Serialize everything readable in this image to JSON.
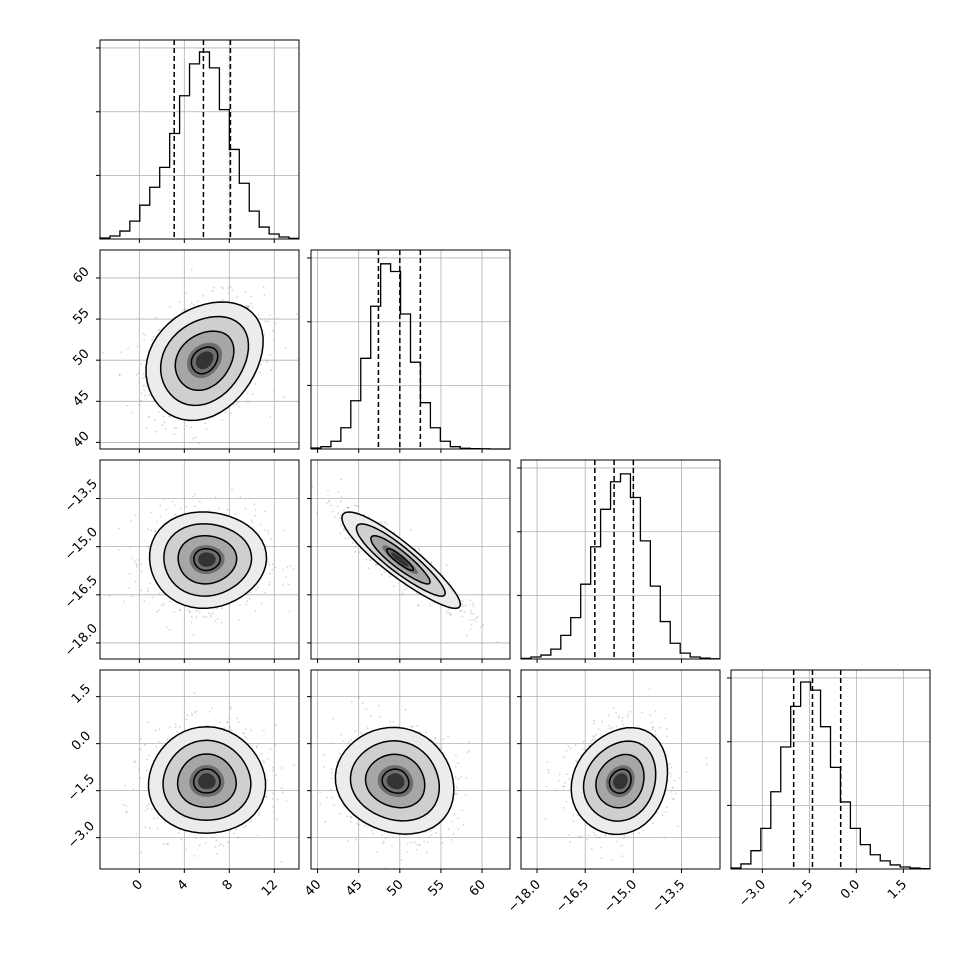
{
  "chart_data": {
    "type": "corner",
    "grid": true,
    "params": [
      {
        "range": [
          -3.5,
          14.2
        ],
        "ticks": [
          0,
          4,
          8,
          12
        ],
        "tick_labels": [
          "0",
          "4",
          "8",
          "12"
        ]
      },
      {
        "range": [
          39.2,
          63.4
        ],
        "ticks": [
          40,
          45,
          50,
          55,
          60
        ],
        "tick_labels": [
          "40",
          "45",
          "50",
          "55",
          "60"
        ]
      },
      {
        "range": [
          -18.5,
          -12.3
        ],
        "ticks": [
          -18.0,
          -16.5,
          -15.0,
          -13.5
        ],
        "tick_labels": [
          "−18.0",
          "−16.5",
          "−15.0",
          "−13.5"
        ]
      },
      {
        "range": [
          -4.0,
          2.35
        ],
        "ticks": [
          -3.0,
          -1.5,
          0.0,
          1.5
        ],
        "tick_labels": [
          "−3.0",
          "−1.5",
          "0.0",
          "1.5"
        ]
      }
    ],
    "histograms": [
      {
        "bin_start": -3.5,
        "bin_width": 0.885,
        "max_count": 0.95,
        "counts": [
          0.005,
          0.015,
          0.04,
          0.09,
          0.17,
          0.26,
          0.36,
          0.53,
          0.72,
          0.88,
          0.94,
          0.86,
          0.65,
          0.45,
          0.28,
          0.14,
          0.06,
          0.025,
          0.01,
          0.003
        ],
        "quantiles": [
          3.1,
          5.7,
          8.1
        ]
      },
      {
        "bin_start": 39.2,
        "bin_width": 1.21,
        "max_count": 0.98,
        "counts": [
          0.005,
          0.012,
          0.04,
          0.11,
          0.25,
          0.47,
          0.74,
          0.96,
          0.92,
          0.7,
          0.45,
          0.24,
          0.11,
          0.04,
          0.012,
          0.004,
          0.002,
          0.001,
          0.0,
          0.0
        ],
        "quantiles": [
          47.4,
          50.0,
          52.5
        ]
      },
      {
        "bin_start": -18.5,
        "bin_width": 0.31,
        "max_count": 0.96,
        "counts": [
          0.003,
          0.01,
          0.02,
          0.05,
          0.12,
          0.21,
          0.38,
          0.57,
          0.76,
          0.9,
          0.94,
          0.82,
          0.6,
          0.37,
          0.19,
          0.08,
          0.03,
          0.01,
          0.004,
          0.001
        ],
        "quantiles": [
          -16.2,
          -15.6,
          -15.0
        ]
      },
      {
        "bin_start": -4.0,
        "bin_width": 0.3175,
        "max_count": 0.93,
        "counts": [
          0.005,
          0.025,
          0.09,
          0.2,
          0.38,
          0.6,
          0.8,
          0.92,
          0.88,
          0.7,
          0.5,
          0.33,
          0.2,
          0.12,
          0.07,
          0.04,
          0.02,
          0.01,
          0.005,
          0.002
        ],
        "quantiles": [
          -2.0,
          -1.4,
          -0.5
        ]
      }
    ],
    "scatter_panels": [
      {
        "x_param": 0,
        "y_param": 1,
        "mean": [
          5.8,
          50.0
        ],
        "sd": [
          2.6,
          3.6
        ],
        "rho": 0.25
      },
      {
        "x_param": 0,
        "y_param": 2,
        "mean": [
          6.0,
          -15.4
        ],
        "sd": [
          2.6,
          0.75
        ],
        "rho": 0.0
      },
      {
        "x_param": 1,
        "y_param": 2,
        "mean": [
          50.0,
          -15.4
        ],
        "sd": [
          3.6,
          0.75
        ],
        "rho": -0.9
      },
      {
        "x_param": 0,
        "y_param": 3,
        "mean": [
          6.0,
          -1.2
        ],
        "sd": [
          2.6,
          0.85
        ],
        "rho": 0.0
      },
      {
        "x_param": 1,
        "y_param": 3,
        "mean": [
          49.5,
          -1.2
        ],
        "sd": [
          3.6,
          0.85
        ],
        "rho": -0.1
      },
      {
        "x_param": 2,
        "y_param": 3,
        "mean": [
          -15.4,
          -1.2
        ],
        "sd": [
          0.75,
          0.85
        ],
        "rho": 0.15
      }
    ]
  }
}
